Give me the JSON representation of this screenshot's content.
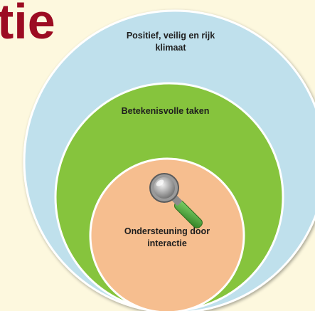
{
  "title": "tie",
  "rings": [
    {
      "level": "outer",
      "label": "Positief, veilig en rijk klimaat",
      "color": "#bfe0ec"
    },
    {
      "level": "middle",
      "label": "Betekenisvolle taken",
      "color": "#86c43c"
    },
    {
      "level": "inner",
      "label": "Ondersteuning door interactie",
      "color": "#f6be8f"
    }
  ],
  "icon": "magnifying-glass-icon",
  "colors": {
    "background": "#fdf8de",
    "title": "#9c0c22",
    "ring_border": "#ffffff",
    "magnifier_handle": "#3f9b2c"
  }
}
